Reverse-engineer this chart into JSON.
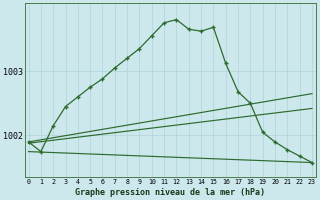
{
  "title": "Graphe pression niveau de la mer (hPa)",
  "x_labels": [
    "0",
    "1",
    "2",
    "3",
    "4",
    "5",
    "6",
    "7",
    "8",
    "9",
    "10",
    "11",
    "12",
    "13",
    "14",
    "15",
    "16",
    "17",
    "18",
    "19",
    "20",
    "21",
    "22",
    "23"
  ],
  "x_values": [
    0,
    1,
    2,
    3,
    4,
    5,
    6,
    7,
    8,
    9,
    10,
    11,
    12,
    13,
    14,
    15,
    16,
    17,
    18,
    19,
    20,
    21,
    22,
    23
  ],
  "line_main": [
    1001.9,
    1001.75,
    1002.15,
    1002.45,
    1002.6,
    1002.75,
    1002.88,
    1003.05,
    1003.2,
    1003.35,
    1003.55,
    1003.75,
    1003.8,
    1003.65,
    1003.62,
    1003.68,
    1003.12,
    1002.68,
    1002.5,
    1002.05,
    1001.9,
    1001.78,
    1001.68,
    1001.58
  ],
  "trend1_x": [
    0,
    23
  ],
  "trend1_y": [
    1001.9,
    1002.65
  ],
  "trend2_x": [
    0,
    23
  ],
  "trend2_y": [
    1001.88,
    1002.42
  ],
  "trend3_x": [
    0,
    23
  ],
  "trend3_y": [
    1001.75,
    1001.58
  ],
  "bg_color": "#cce8ed",
  "line_color": "#2d6a2d",
  "grid_color": "#b0d4d8",
  "ytick_labels": [
    "1002",
    "1003"
  ],
  "ylim": [
    1001.35,
    1004.05
  ],
  "yticks": [
    1002.0,
    1003.0
  ],
  "xlim": [
    -0.3,
    23.3
  ]
}
